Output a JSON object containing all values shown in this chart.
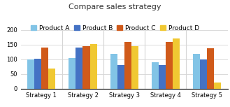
{
  "title": "Compare sales strategy",
  "categories": [
    "Strategy 1",
    "Strategy 2",
    "Strategy 3",
    "Strategy 4",
    "Strategy 5"
  ],
  "products": [
    "Product A",
    "Product B",
    "Product C",
    "Product D"
  ],
  "values": {
    "Product A": [
      100,
      105,
      120,
      90,
      118
    ],
    "Product B": [
      102,
      140,
      80,
      80,
      100
    ],
    "Product C": [
      140,
      145,
      160,
      160,
      137
    ],
    "Product D": [
      70,
      152,
      145,
      170,
      22
    ]
  },
  "colors": {
    "Product A": "#82c4e6",
    "Product B": "#4472c4",
    "Product C": "#d05a1a",
    "Product D": "#f0c832"
  },
  "ylim": [
    0,
    200
  ],
  "yticks": [
    0,
    50,
    100,
    150,
    200
  ],
  "background_color": "#ffffff",
  "grid_color": "#d5d5d5",
  "title_fontsize": 8,
  "legend_fontsize": 6.5,
  "tick_fontsize": 6
}
